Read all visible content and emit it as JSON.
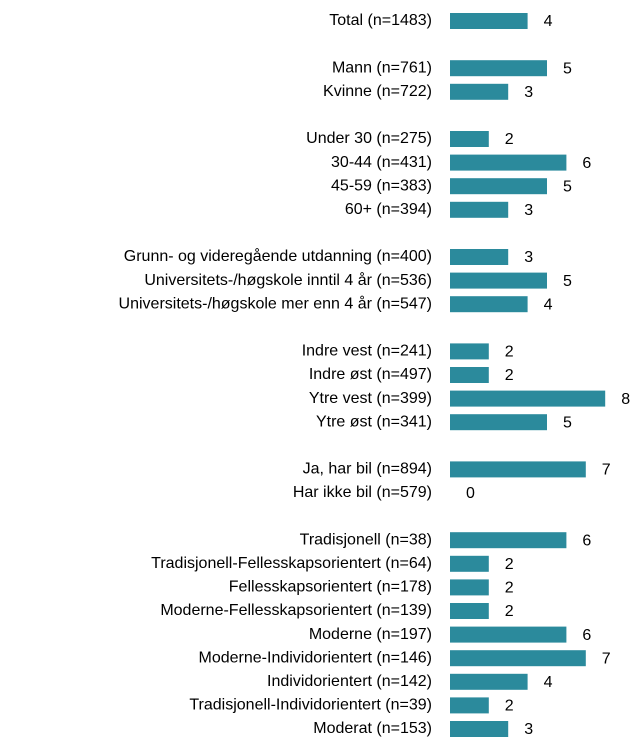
{
  "chart_data": {
    "type": "bar",
    "orientation": "horizontal",
    "color": "#2b8a9c",
    "categories": [
      "Total (n=1483)",
      null,
      "Mann (n=761)",
      "Kvinne (n=722)",
      null,
      "Under 30 (n=275)",
      "30-44 (n=431)",
      "45-59 (n=383)",
      "60+ (n=394)",
      null,
      "Grunn- og videregående utdanning (n=400)",
      "Universitets-/høgskole inntil 4 år (n=536)",
      "Universitets-/høgskole mer enn 4 år (n=547)",
      null,
      "Indre vest (n=241)",
      "Indre øst (n=497)",
      "Ytre vest (n=399)",
      "Ytre øst (n=341)",
      null,
      "Ja, har bil (n=894)",
      "Har ikke bil (n=579)",
      null,
      "Tradisjonell (n=38)",
      "Tradisjonell-Fellesskapsorientert (n=64)",
      "Fellesskapsorientert (n=178)",
      "Moderne-Fellesskapsorientert (n=139)",
      "Moderne (n=197)",
      "Moderne-Individorientert (n=146)",
      "Individorientert (n=142)",
      "Tradisjonell-Individorientert (n=39)",
      "Moderat (n=153)"
    ],
    "values": [
      4,
      null,
      5,
      3,
      null,
      2,
      6,
      5,
      3,
      null,
      3,
      5,
      4,
      null,
      2,
      2,
      8,
      5,
      null,
      7,
      0,
      null,
      6,
      2,
      2,
      2,
      6,
      7,
      4,
      2,
      3
    ]
  }
}
